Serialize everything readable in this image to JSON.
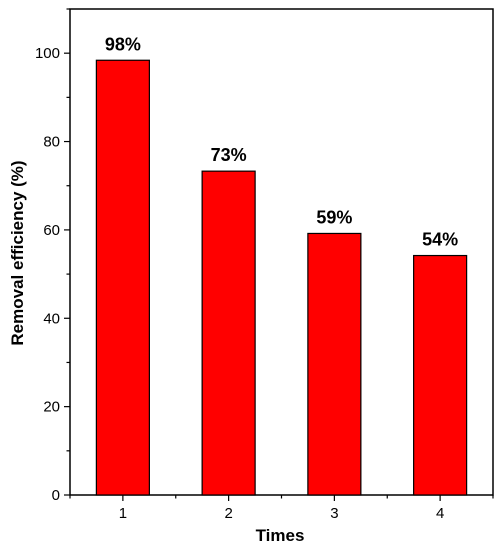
{
  "chart_data": {
    "type": "bar",
    "categories": [
      "1",
      "2",
      "3",
      "4"
    ],
    "values": [
      98.4,
      73.3,
      59.2,
      54.2
    ],
    "data_labels": [
      "98%",
      "73%",
      "59%",
      "54%"
    ],
    "xlabel": "Times",
    "ylabel": "Removal efficiency (%)",
    "ylim": [
      0,
      110
    ],
    "y_ticks": [
      0,
      20,
      40,
      60,
      80,
      100
    ],
    "grid": false,
    "legend": "none",
    "colors": {
      "bar_fill": "#ff0000",
      "bar_stroke": "#000000",
      "axis": "#000000"
    }
  }
}
